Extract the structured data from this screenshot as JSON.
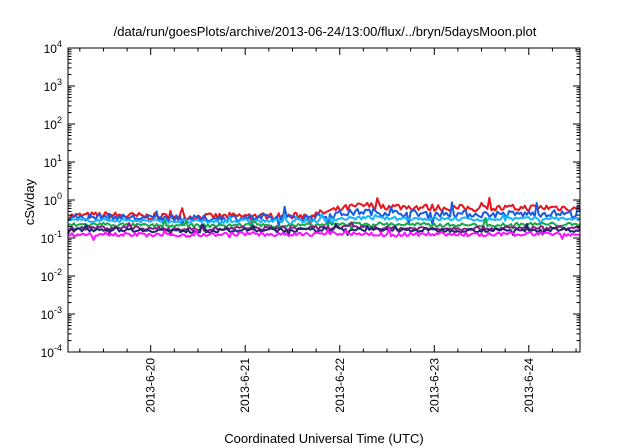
{
  "chart_data": {
    "type": "line",
    "title": "/data/run/goesPlots/archive/2013-06-24/13:00/flux/../bryn/5daysMoon.plot",
    "xlabel": "Coordinated Universal Time (UTC)",
    "ylabel": "cSv/day",
    "x_range": [
      "2013-06-19 03:00",
      "2013-06-24 13:00"
    ],
    "x_ticks": [
      "2013-6-20",
      "2013-6-21",
      "2013-6-22",
      "2013-6-23",
      "2013-6-24"
    ],
    "y_scale": "log",
    "ylim": [
      0.0001,
      10000
    ],
    "y_ticks": [
      {
        "base": "10",
        "exp": "-4"
      },
      {
        "base": "10",
        "exp": "-3"
      },
      {
        "base": "10",
        "exp": "-2"
      },
      {
        "base": "10",
        "exp": "-1"
      },
      {
        "base": "10",
        "exp": "0"
      },
      {
        "base": "10",
        "exp": "1"
      },
      {
        "base": "10",
        "exp": "2"
      },
      {
        "base": "10",
        "exp": "3"
      },
      {
        "base": "10",
        "exp": "4"
      }
    ],
    "grid": false,
    "legend": "none",
    "x": [
      "2013-06-19 03:00",
      "2013-06-19 12:00",
      "2013-06-20 00:00",
      "2013-06-20 12:00",
      "2013-06-21 00:00",
      "2013-06-21 12:00",
      "2013-06-21 18:00",
      "2013-06-22 00:00",
      "2013-06-22 06:00",
      "2013-06-22 12:00",
      "2013-06-23 00:00",
      "2013-06-23 12:00",
      "2013-06-24 00:00",
      "2013-06-24 06:00",
      "2013-06-24 13:00"
    ],
    "series": [
      {
        "color": "#e8141e",
        "values": [
          0.38,
          0.4,
          0.37,
          0.36,
          0.38,
          0.37,
          0.42,
          0.58,
          0.72,
          0.68,
          0.63,
          0.6,
          0.62,
          0.64,
          0.6
        ]
      },
      {
        "color": "#1a5ae0",
        "values": [
          0.34,
          0.36,
          0.33,
          0.32,
          0.34,
          0.33,
          0.36,
          0.44,
          0.5,
          0.46,
          0.44,
          0.42,
          0.43,
          0.45,
          0.42
        ]
      },
      {
        "color": "#18b4ff",
        "values": [
          0.29,
          0.3,
          0.28,
          0.27,
          0.28,
          0.28,
          0.29,
          0.32,
          0.34,
          0.33,
          0.32,
          0.31,
          0.32,
          0.33,
          0.31
        ]
      },
      {
        "color": "#1aa84a",
        "values": [
          0.22,
          0.23,
          0.21,
          0.21,
          0.22,
          0.21,
          0.22,
          0.23,
          0.24,
          0.23,
          0.22,
          0.22,
          0.23,
          0.23,
          0.22
        ]
      },
      {
        "color": "#8a1a8a",
        "values": [
          0.18,
          0.19,
          0.18,
          0.17,
          0.18,
          0.18,
          0.18,
          0.19,
          0.19,
          0.18,
          0.18,
          0.18,
          0.18,
          0.19,
          0.18
        ]
      },
      {
        "color": "#1a2a6a",
        "values": [
          0.16,
          0.17,
          0.16,
          0.15,
          0.16,
          0.16,
          0.16,
          0.17,
          0.17,
          0.16,
          0.16,
          0.16,
          0.16,
          0.17,
          0.16
        ]
      },
      {
        "color": "#ff10ff",
        "values": [
          0.12,
          0.13,
          0.12,
          0.12,
          0.13,
          0.12,
          0.13,
          0.13,
          0.13,
          0.12,
          0.13,
          0.12,
          0.13,
          0.13,
          0.12
        ]
      }
    ]
  }
}
